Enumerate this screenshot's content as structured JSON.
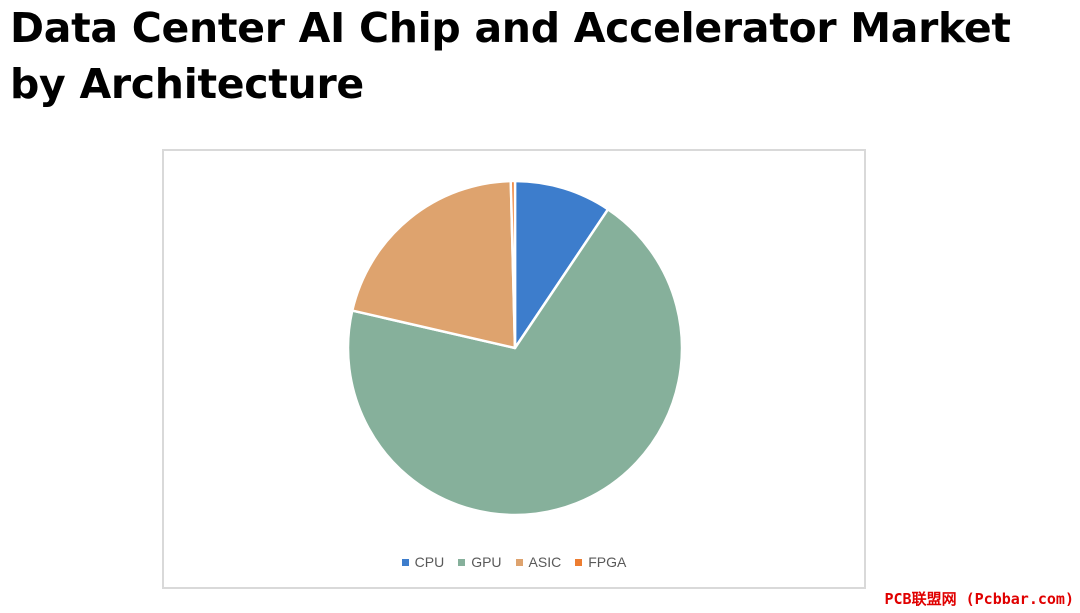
{
  "page": {
    "title": "Data Center AI Chip and Accelerator Market by Architecture",
    "watermark": "PCB联盟网 (Pcbbar.com)"
  },
  "chart_data": {
    "type": "pie",
    "title": "",
    "categories": [
      "CPU",
      "GPU",
      "ASIC",
      "FPGA"
    ],
    "values": [
      9.4,
      69.2,
      21.0,
      0.4
    ],
    "colors": [
      "#3d7dcc",
      "#86b09b",
      "#dea36e",
      "#ed7d31"
    ],
    "legend": "bottom",
    "start_angle_deg": 0,
    "direction": "clockwise"
  }
}
